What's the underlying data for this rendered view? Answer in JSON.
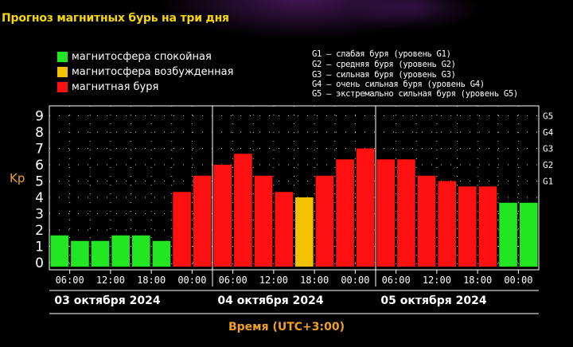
{
  "title": "Прогноз магнитных бурь на три дня",
  "legend": [
    {
      "label": "магнитосфера спокойная",
      "color": "#22e622"
    },
    {
      "label": "магнитосфера возбужденная",
      "color": "#f5c000"
    },
    {
      "label": "магнитная буря",
      "color": "#ff1010"
    }
  ],
  "g_legend": [
    "G1 – слабая буря (уровень G1)",
    "G2 – средняя буря (уровень G2)",
    "G3 – сильная буря (уровень G3)",
    "G4 – очень сильная буря (уровень G4)",
    "G5 – экстремально сильная буря (уровень G5)"
  ],
  "dates": [
    "03 октября 2024",
    "04 октября 2024",
    "05 октября 2024"
  ],
  "xaxis_label": "Время (UTC+3:00)",
  "chart_data": {
    "type": "bar",
    "ylabel": "Kp",
    "xlabel": "Время (UTC+3:00)",
    "ylim": [
      0,
      9
    ],
    "yticks": [
      0,
      1,
      2,
      3,
      4,
      5,
      6,
      7,
      8,
      9
    ],
    "right_ticks": [
      {
        "label": "G1",
        "value": 5
      },
      {
        "label": "G2",
        "value": 6
      },
      {
        "label": "G3",
        "value": 7
      },
      {
        "label": "G4",
        "value": 8
      },
      {
        "label": "G5",
        "value": 9
      }
    ],
    "xtick_labels": [
      "06:00",
      "12:00",
      "18:00",
      "00:00",
      "06:00",
      "12:00",
      "18:00",
      "00:00",
      "06:00",
      "12:00",
      "18:00",
      "00:00"
    ],
    "values": [
      1.67,
      1.33,
      1.33,
      1.67,
      1.67,
      1.33,
      4.33,
      5.33,
      6.0,
      6.67,
      5.33,
      4.33,
      4.0,
      5.33,
      6.33,
      7.0,
      6.33,
      6.33,
      5.33,
      5.0,
      4.67,
      4.67,
      3.67,
      3.67
    ],
    "colors": [
      "green",
      "green",
      "green",
      "green",
      "green",
      "green",
      "red",
      "red",
      "red",
      "red",
      "red",
      "red",
      "yellow",
      "red",
      "red",
      "red",
      "red",
      "red",
      "red",
      "red",
      "red",
      "red",
      "green",
      "green"
    ],
    "palette": {
      "green": "#22e622",
      "yellow": "#f5c000",
      "red": "#ff1010"
    },
    "grid": true
  }
}
